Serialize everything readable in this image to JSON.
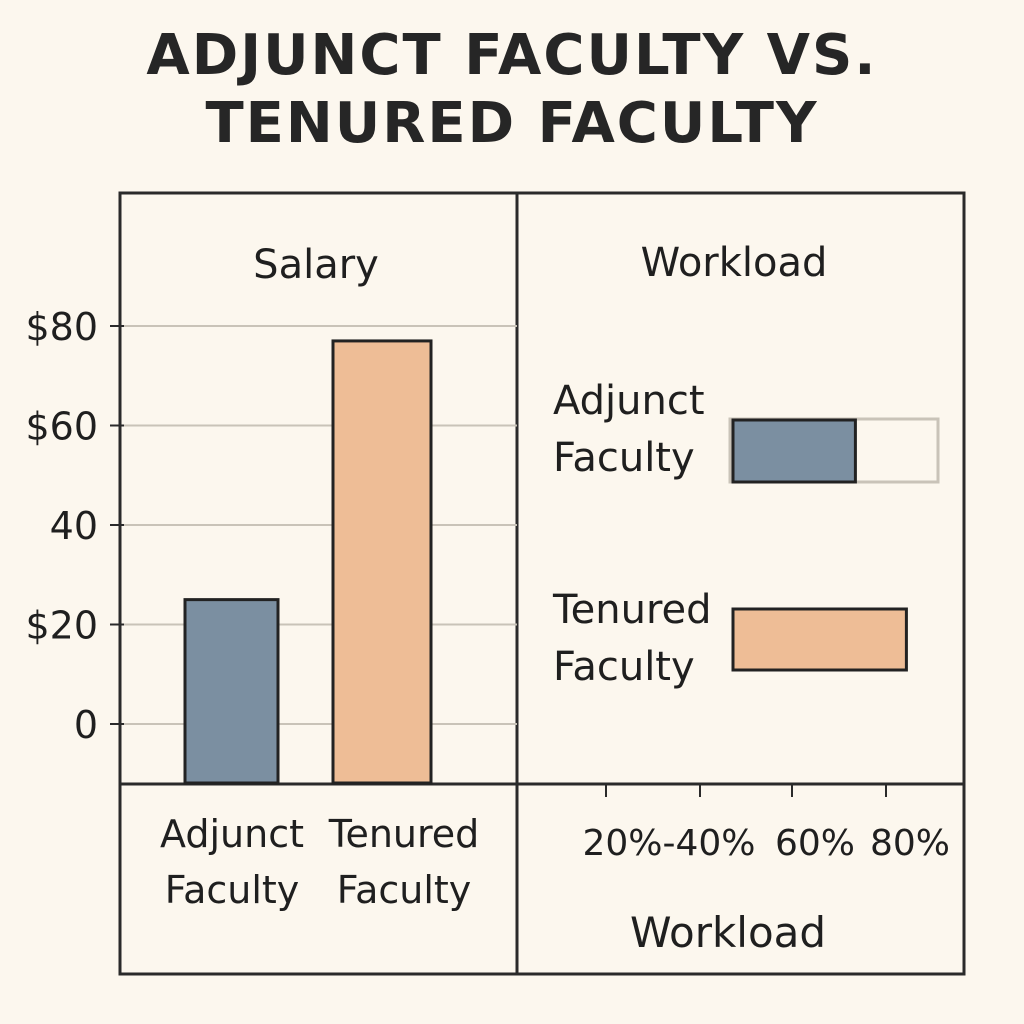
{
  "title_lines": [
    "ADJUNCT FACULTY VS.",
    "TENURED FACULTY"
  ],
  "chart_data": [
    {
      "type": "bar",
      "title": "Salary",
      "categories": [
        "Adjunct Faculty",
        "Tenured Faculty"
      ],
      "category_label_lines": [
        [
          "Adjunct",
          "Faculty"
        ],
        [
          "Tenured",
          "Faculty"
        ]
      ],
      "values": [
        25,
        77
      ],
      "colors": [
        "#7b8fa1",
        "#eebd96"
      ],
      "yticks": [
        {
          "value": 80,
          "label": "$80"
        },
        {
          "value": 60,
          "label": "$60"
        },
        {
          "value": 40,
          "label": "40"
        },
        {
          "value": 20,
          "label": "$20"
        },
        {
          "value": 0,
          "label": "0"
        }
      ],
      "ylim": [
        0,
        80
      ],
      "grid": true
    },
    {
      "type": "bar",
      "orientation": "horizontal",
      "title": "Workload",
      "categories": [
        "Adjunct Faculty",
        "Tenured Faculty"
      ],
      "category_label_lines": [
        [
          "Adjunct",
          "Faculty"
        ],
        [
          "Tenured",
          "Faculty"
        ]
      ],
      "values": [
        [
          0,
          60
        ],
        [
          0,
          85
        ]
      ],
      "colors": [
        "#7b8fa1",
        "#eebd96"
      ],
      "xtick_labels": [
        "20%-40%",
        "60%",
        "80%"
      ],
      "xlabel": "Workload"
    }
  ]
}
